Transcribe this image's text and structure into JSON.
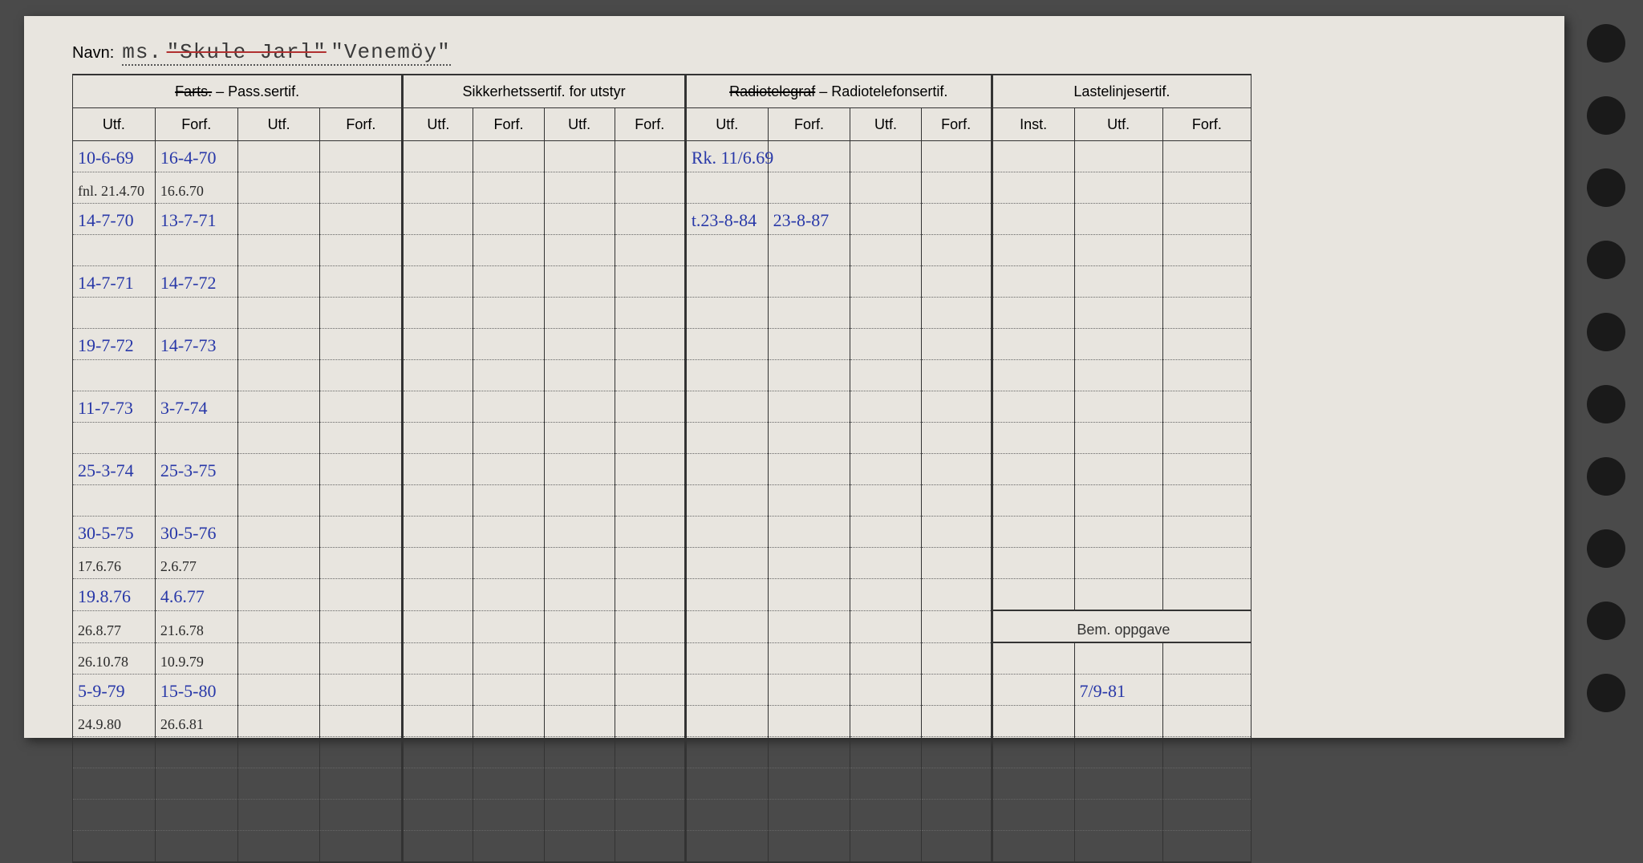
{
  "navn": {
    "label": "Navn:",
    "prefix": "ms.",
    "struck_name": "\"Skule Jarl\"",
    "name": "\"Venemöy\""
  },
  "headers": {
    "group1": "Farts. – Pass.sertif.",
    "group1_struck": "Farts.",
    "group1_rest": " – Pass.sertif.",
    "group2": "Sikkerhetssertif. for utstyr",
    "group3_struck": "Radiotelegraf",
    "group3_rest": " – Radiotelefonsertif.",
    "group4": "Lastelinjesertif.",
    "utf": "Utf.",
    "forf": "Forf.",
    "inst": "Inst.",
    "bem": "Bem. oppgave"
  },
  "rows": [
    {
      "c0": "10-6-69",
      "c1": "16-4-70",
      "c8": "Rk. 11/6.69"
    },
    {
      "c0": "fnl. 21.4.70",
      "c0_cls": "black-ink",
      "c1": "16.6.70",
      "c1_cls": "black-ink"
    },
    {
      "c0": "14-7-70",
      "c1": "13-7-71",
      "c8": "t.23-8-84",
      "c9": "23-8-87"
    },
    {
      "c0": "",
      "c1": ""
    },
    {
      "c0": "14-7-71",
      "c1": "14-7-72"
    },
    {
      "c0": "",
      "c1": ""
    },
    {
      "c0": "19-7-72",
      "c1": "14-7-73"
    },
    {
      "c0": "",
      "c1": ""
    },
    {
      "c0": "11-7-73",
      "c1": "3-7-74"
    },
    {
      "c0": "",
      "c1": ""
    },
    {
      "c0": "25-3-74",
      "c1": "25-3-75"
    },
    {
      "c0": "",
      "c1": ""
    },
    {
      "c0": "30-5-75",
      "c1": "30-5-76"
    },
    {
      "c0": "17.6.76",
      "c0_cls": "black-ink",
      "c1": "2.6.77",
      "c1_cls": "black-ink"
    },
    {
      "c0": "19.8.76",
      "c1": "4.6.77"
    },
    {
      "c0": "26.8.77",
      "c0_cls": "black-ink",
      "c1": "21.6.78",
      "c1_cls": "black-ink",
      "bem": true
    },
    {
      "c0": "26.10.78",
      "c0_cls": "black-ink",
      "c1": "10.9.79",
      "c1_cls": "black-ink"
    },
    {
      "c0": "5-9-79",
      "c1": "15-5-80",
      "c13": "7/9-81"
    },
    {
      "c0": "24.9.80",
      "c0_cls": "black-ink",
      "c1": "26.6.81",
      "c1_cls": "black-ink"
    },
    {
      "c0": "",
      "c1": ""
    },
    {
      "c0": "",
      "c1": ""
    },
    {
      "c0": "",
      "c1": ""
    },
    {
      "c0": "",
      "c1": "",
      "last": true
    }
  ],
  "colors": {
    "paper": "#e8e5df",
    "ink_blue": "#2838a8",
    "ink_black": "#2a2a2a",
    "border": "#333333"
  }
}
